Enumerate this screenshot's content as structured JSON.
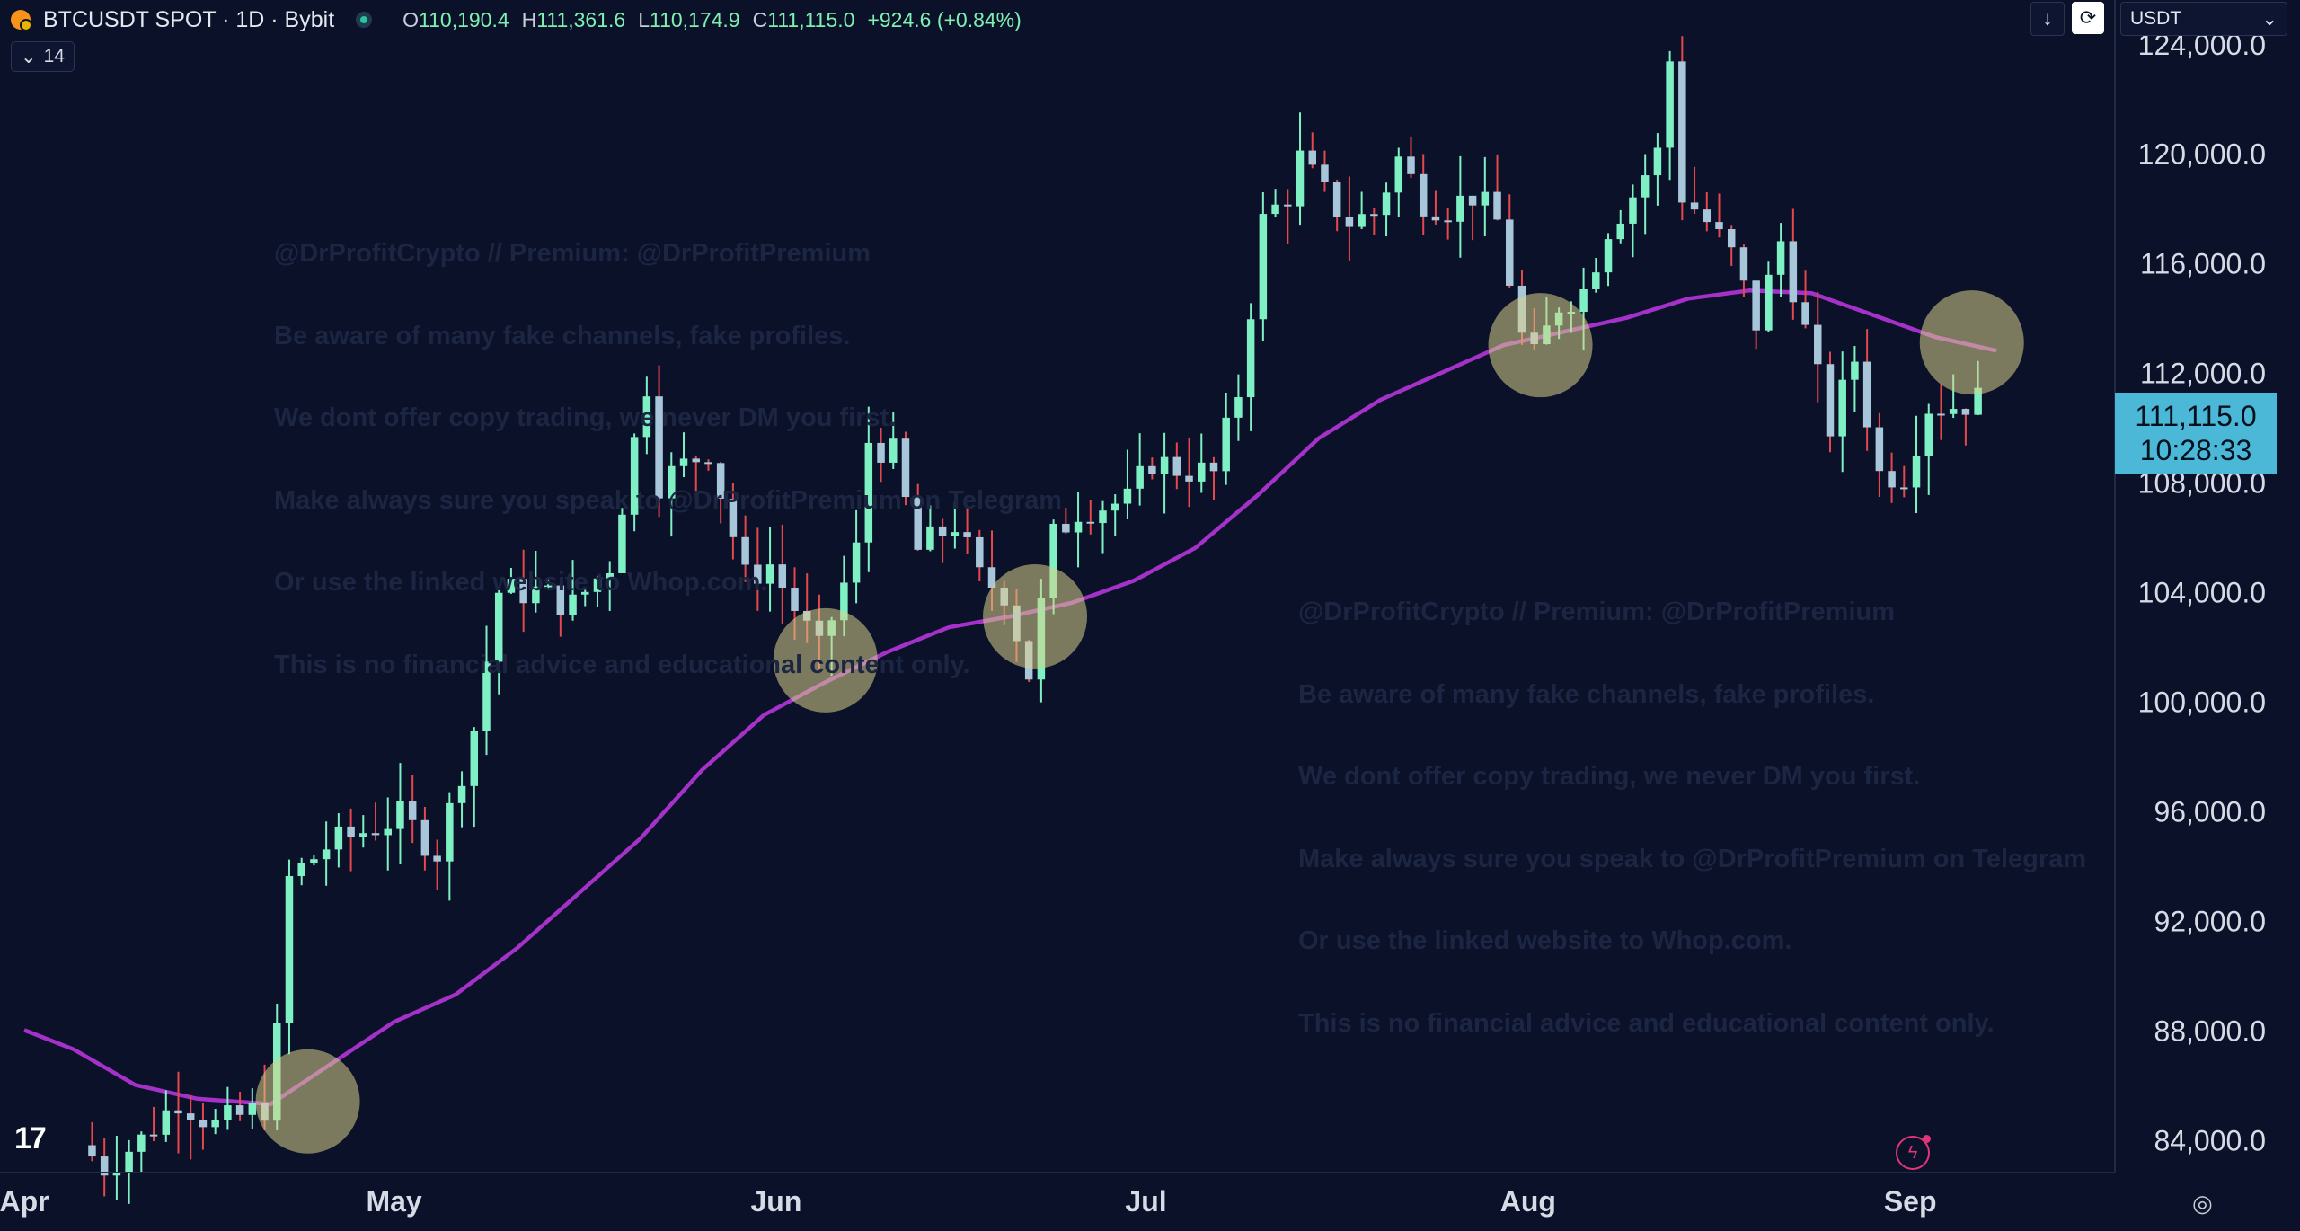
{
  "header": {
    "symbol": "BTCUSDT SPOT · 1D · Bybit",
    "ohlc": {
      "o_label": "O",
      "o_value": "110,190.4",
      "h_label": "H",
      "h_value": "111,361.6",
      "l_label": "L",
      "l_value": "110,174.9",
      "c_label": "C",
      "c_value": "111,115.0",
      "change": "+924.6 (+0.84%)"
    },
    "indicator_count": "14",
    "currency": "USDT"
  },
  "price_label": {
    "price": "111,115.0",
    "countdown": "10:28:33"
  },
  "watermark_lines": [
    "@DrProfitCrypto // Premium: @DrProfitPremium",
    "Be aware of many fake channels, fake profiles.",
    "We dont offer copy trading, we never DM you first.",
    "Make always sure you speak to @DrProfitPremium on Telegram",
    "Or use the linked website to Whop.com.",
    "This is no financial advice and educational content only."
  ],
  "colors": {
    "up": "#7ef0c4",
    "down": "#a8c6d9",
    "up_wick": "#7ef0c4",
    "down_wick": "#e5484d",
    "ma": "#a431c8",
    "highlight": "#d8d28a",
    "background": "#0a1128"
  },
  "chart_data": {
    "type": "candlestick",
    "title": "",
    "xlabel": "",
    "ylabel": "",
    "ylim": [
      82800,
      125600
    ],
    "y_ticks": [
      84000,
      88000,
      92000,
      96000,
      100000,
      104000,
      108000,
      112000,
      116000,
      120000,
      124000
    ],
    "y_tick_labels": [
      "84,000.0",
      "88,000.0",
      "92,000.0",
      "96,000.0",
      "100,000.0",
      "104,000.0",
      "108,000.0",
      "112,000.0",
      "116,000.0",
      "120,000.0",
      "124,000.0"
    ],
    "x_ticks": [
      {
        "label": "Apr",
        "date": "2025-04-01"
      },
      {
        "label": "May",
        "date": "2025-05-01"
      },
      {
        "label": "Jun",
        "date": "2025-06-01"
      },
      {
        "label": "Jul",
        "date": "2025-07-01"
      },
      {
        "label": "Aug",
        "date": "2025-08-01"
      },
      {
        "label": "Sep",
        "date": "2025-09-01"
      }
    ],
    "start_date": "2025-04-06",
    "days": 154,
    "moving_average": {
      "name": "",
      "points": [
        [
          "2025-04-01",
          88000
        ],
        [
          "2025-04-05",
          87300
        ],
        [
          "2025-04-10",
          86000
        ],
        [
          "2025-04-15",
          85500
        ],
        [
          "2025-04-21",
          85300
        ],
        [
          "2025-04-26",
          86800
        ],
        [
          "2025-05-01",
          88300
        ],
        [
          "2025-05-06",
          89300
        ],
        [
          "2025-05-11",
          91000
        ],
        [
          "2025-05-16",
          93000
        ],
        [
          "2025-05-21",
          95000
        ],
        [
          "2025-05-26",
          97500
        ],
        [
          "2025-05-31",
          99500
        ],
        [
          "2025-06-05",
          100700
        ],
        [
          "2025-06-10",
          101800
        ],
        [
          "2025-06-15",
          102700
        ],
        [
          "2025-06-20",
          103100
        ],
        [
          "2025-06-25",
          103600
        ],
        [
          "2025-06-30",
          104400
        ],
        [
          "2025-07-05",
          105600
        ],
        [
          "2025-07-10",
          107500
        ],
        [
          "2025-07-15",
          109600
        ],
        [
          "2025-07-20",
          111000
        ],
        [
          "2025-07-25",
          112000
        ],
        [
          "2025-07-30",
          113000
        ],
        [
          "2025-08-04",
          113500
        ],
        [
          "2025-08-09",
          114000
        ],
        [
          "2025-08-14",
          114700
        ],
        [
          "2025-08-19",
          115000
        ],
        [
          "2025-08-24",
          114900
        ],
        [
          "2025-08-29",
          114100
        ],
        [
          "2025-09-03",
          113300
        ],
        [
          "2025-09-08",
          112800
        ]
      ]
    },
    "highlights": [
      {
        "date": "2025-04-24",
        "value": 85400
      },
      {
        "date": "2025-06-05",
        "value": 101500
      },
      {
        "date": "2025-06-22",
        "value": 103100
      },
      {
        "date": "2025-08-02",
        "value": 113000
      },
      {
        "date": "2025-09-06",
        "value": 113100
      }
    ],
    "anchors": [
      [
        "2025-04-06",
        83800
      ],
      [
        "2025-04-08",
        83000
      ],
      [
        "2025-04-11",
        84000
      ],
      [
        "2025-04-14",
        85500
      ],
      [
        "2025-04-17",
        84500
      ],
      [
        "2025-04-21",
        85200
      ],
      [
        "2025-04-22",
        87800
      ],
      [
        "2025-04-23",
        93500
      ],
      [
        "2025-04-26",
        94700
      ],
      [
        "2025-05-02",
        95800
      ],
      [
        "2025-05-05",
        94500
      ],
      [
        "2025-05-08",
        99000
      ],
      [
        "2025-05-10",
        104000
      ],
      [
        "2025-05-13",
        104000
      ],
      [
        "2025-05-16",
        103500
      ],
      [
        "2025-05-19",
        105000
      ],
      [
        "2025-05-21",
        109500
      ],
      [
        "2025-05-22",
        111600
      ],
      [
        "2025-05-23",
        108000
      ],
      [
        "2025-05-27",
        109200
      ],
      [
        "2025-05-30",
        104500
      ],
      [
        "2025-06-01",
        105000
      ],
      [
        "2025-06-05",
        101800
      ],
      [
        "2025-06-08",
        105500
      ],
      [
        "2025-06-09",
        109500
      ],
      [
        "2025-06-11",
        109000
      ],
      [
        "2025-06-13",
        105500
      ],
      [
        "2025-06-16",
        106500
      ],
      [
        "2025-06-18",
        104500
      ],
      [
        "2025-06-20",
        104000
      ],
      [
        "2025-06-22",
        101000
      ],
      [
        "2025-06-24",
        106000
      ],
      [
        "2025-06-26",
        107000
      ],
      [
        "2025-06-30",
        107300
      ],
      [
        "2025-07-02",
        108800
      ],
      [
        "2025-07-04",
        108500
      ],
      [
        "2025-07-07",
        108300
      ],
      [
        "2025-07-09",
        111300
      ],
      [
        "2025-07-11",
        117500
      ],
      [
        "2025-07-13",
        118500
      ],
      [
        "2025-07-14",
        119800
      ],
      [
        "2025-07-16",
        118500
      ],
      [
        "2025-07-18",
        117500
      ],
      [
        "2025-07-20",
        117800
      ],
      [
        "2025-07-22",
        119800
      ],
      [
        "2025-07-24",
        118300
      ],
      [
        "2025-07-26",
        118000
      ],
      [
        "2025-07-28",
        118500
      ],
      [
        "2025-07-30",
        117500
      ],
      [
        "2025-08-01",
        113300
      ],
      [
        "2025-08-02",
        112500
      ],
      [
        "2025-08-04",
        114500
      ],
      [
        "2025-08-06",
        115000
      ],
      [
        "2025-08-08",
        117300
      ],
      [
        "2025-08-10",
        118500
      ],
      [
        "2025-08-12",
        120000
      ],
      [
        "2025-08-13",
        123400
      ],
      [
        "2025-08-14",
        118500
      ],
      [
        "2025-08-16",
        117500
      ],
      [
        "2025-08-18",
        116300
      ],
      [
        "2025-08-20",
        113800
      ],
      [
        "2025-08-22",
        116800
      ],
      [
        "2025-08-24",
        113500
      ],
      [
        "2025-08-26",
        110000
      ],
      [
        "2025-08-28",
        112500
      ],
      [
        "2025-08-30",
        108300
      ],
      [
        "2025-09-01",
        108300
      ],
      [
        "2025-09-03",
        110800
      ],
      [
        "2025-09-05",
        110800
      ],
      [
        "2025-09-07",
        111000
      ],
      [
        "2025-09-08",
        110200
      ],
      [
        "2025-09-09",
        111115
      ]
    ]
  }
}
